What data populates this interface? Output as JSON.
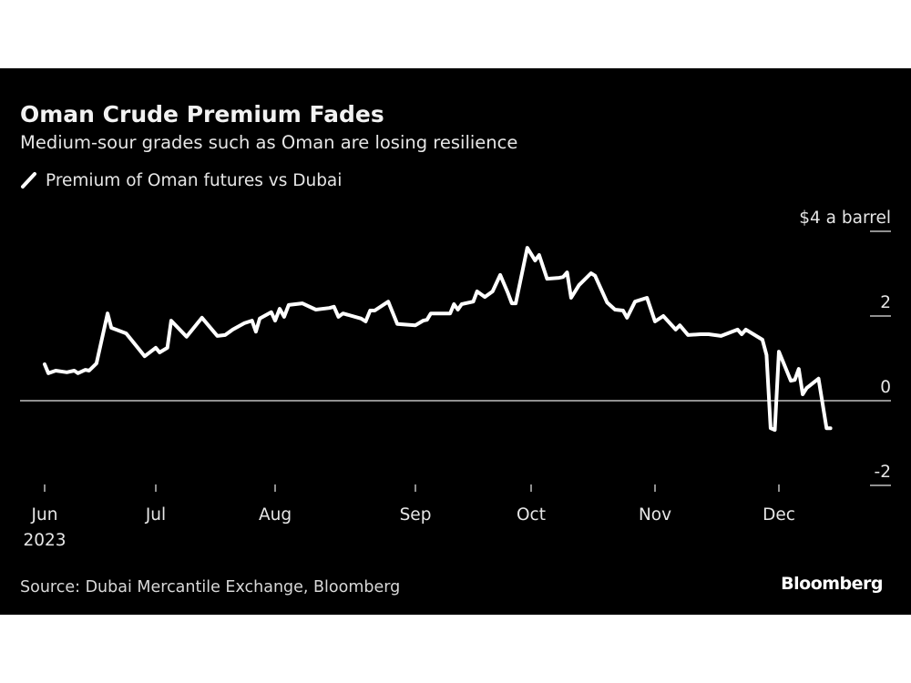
{
  "title": "Oman Crude Premium Fades",
  "subtitle": "Medium-sour grades such as Oman are losing resilience",
  "legend": "Premium of Oman futures vs Dubai",
  "source": "Source: Dubai Mercantile Exchange, Bloomberg",
  "logo": "Bloomberg",
  "colors": {
    "background": "#000000",
    "line": "#ffffff",
    "zero_line": "#bfbfbf",
    "text": "#e6e6e6"
  },
  "chart_data": {
    "type": "line",
    "title": "Oman Crude Premium Fades",
    "ylabel": "$4 a barrel",
    "ylim": [
      -2,
      4
    ],
    "y_ticks": [
      {
        "value": 4,
        "label": "$4 a barrel"
      },
      {
        "value": 2,
        "label": "2"
      },
      {
        "value": 0,
        "label": "0"
      },
      {
        "value": -2,
        "label": "-2"
      }
    ],
    "x_ticks": [
      {
        "date": "2023-06-01",
        "label": "Jun",
        "sublabel": "2023"
      },
      {
        "date": "2023-07-01",
        "label": "Jul"
      },
      {
        "date": "2023-08-01",
        "label": "Aug"
      },
      {
        "date": "2023-09-01",
        "label": "Sep"
      },
      {
        "date": "2023-10-01",
        "label": "Oct"
      },
      {
        "date": "2023-11-01",
        "label": "Nov"
      },
      {
        "date": "2023-12-01",
        "label": "Dec"
      }
    ],
    "grid": false,
    "legend_position": "top-left",
    "series": [
      {
        "name": "Premium of Oman futures vs Dubai",
        "points": [
          [
            "2023-06-01",
            0.86
          ],
          [
            "2023-06-02",
            0.65
          ],
          [
            "2023-06-04",
            0.71
          ],
          [
            "2023-06-07",
            0.67
          ],
          [
            "2023-06-09",
            0.71
          ],
          [
            "2023-06-10",
            0.65
          ],
          [
            "2023-06-12",
            0.73
          ],
          [
            "2023-06-13",
            0.71
          ],
          [
            "2023-06-15",
            0.88
          ],
          [
            "2023-06-18",
            2.06
          ],
          [
            "2023-06-19",
            1.72
          ],
          [
            "2023-06-23",
            1.59
          ],
          [
            "2023-06-28",
            1.05
          ],
          [
            "2023-07-01",
            1.25
          ],
          [
            "2023-07-02",
            1.14
          ],
          [
            "2023-07-04",
            1.25
          ],
          [
            "2023-07-05",
            1.89
          ],
          [
            "2023-07-09",
            1.51
          ],
          [
            "2023-07-13",
            1.96
          ],
          [
            "2023-07-17",
            1.53
          ],
          [
            "2023-07-19",
            1.55
          ],
          [
            "2023-07-21",
            1.68
          ],
          [
            "2023-07-24",
            1.83
          ],
          [
            "2023-07-26",
            1.89
          ],
          [
            "2023-07-27",
            1.63
          ],
          [
            "2023-07-28",
            1.94
          ],
          [
            "2023-07-31",
            2.09
          ],
          [
            "2023-08-01",
            1.89
          ],
          [
            "2023-08-02",
            2.17
          ],
          [
            "2023-08-03",
            1.98
          ],
          [
            "2023-08-04",
            2.26
          ],
          [
            "2023-08-07",
            2.3
          ],
          [
            "2023-08-10",
            2.15
          ],
          [
            "2023-08-13",
            2.19
          ],
          [
            "2023-08-14",
            2.22
          ],
          [
            "2023-08-15",
            1.98
          ],
          [
            "2023-08-16",
            2.06
          ],
          [
            "2023-08-20",
            1.94
          ],
          [
            "2023-08-21",
            1.87
          ],
          [
            "2023-08-22",
            2.13
          ],
          [
            "2023-08-23",
            2.13
          ],
          [
            "2023-08-26",
            2.34
          ],
          [
            "2023-08-28",
            1.81
          ],
          [
            "2023-09-01",
            1.78
          ],
          [
            "2023-09-03",
            1.89
          ],
          [
            "2023-09-04",
            1.91
          ],
          [
            "2023-09-05",
            2.06
          ],
          [
            "2023-09-08",
            2.06
          ],
          [
            "2023-09-10",
            2.06
          ],
          [
            "2023-09-11",
            2.28
          ],
          [
            "2023-09-12",
            2.15
          ],
          [
            "2023-09-13",
            2.28
          ],
          [
            "2023-09-16",
            2.34
          ],
          [
            "2023-09-17",
            2.58
          ],
          [
            "2023-09-19",
            2.45
          ],
          [
            "2023-09-21",
            2.58
          ],
          [
            "2023-09-23",
            2.97
          ],
          [
            "2023-09-25",
            2.54
          ],
          [
            "2023-09-26",
            2.3
          ],
          [
            "2023-09-27",
            2.3
          ],
          [
            "2023-09-30",
            3.61
          ],
          [
            "2023-10-02",
            3.31
          ],
          [
            "2023-10-03",
            3.44
          ],
          [
            "2023-10-05",
            2.88
          ],
          [
            "2023-10-08",
            2.9
          ],
          [
            "2023-10-09",
            2.92
          ],
          [
            "2023-10-10",
            3.03
          ],
          [
            "2023-10-11",
            2.43
          ],
          [
            "2023-10-13",
            2.73
          ],
          [
            "2023-10-16",
            3.01
          ],
          [
            "2023-10-17",
            2.95
          ],
          [
            "2023-10-20",
            2.32
          ],
          [
            "2023-10-22",
            2.15
          ],
          [
            "2023-10-24",
            2.13
          ],
          [
            "2023-10-25",
            1.96
          ],
          [
            "2023-10-27",
            2.34
          ],
          [
            "2023-10-30",
            2.43
          ],
          [
            "2023-11-01",
            1.87
          ],
          [
            "2023-11-03",
            2.0
          ],
          [
            "2023-11-06",
            1.68
          ],
          [
            "2023-11-07",
            1.78
          ],
          [
            "2023-11-09",
            1.55
          ],
          [
            "2023-11-12",
            1.57
          ],
          [
            "2023-11-14",
            1.57
          ],
          [
            "2023-11-17",
            1.53
          ],
          [
            "2023-11-21",
            1.68
          ],
          [
            "2023-11-22",
            1.57
          ],
          [
            "2023-11-23",
            1.68
          ],
          [
            "2023-11-27",
            1.44
          ],
          [
            "2023-11-28",
            1.08
          ],
          [
            "2023-11-29",
            -0.65
          ],
          [
            "2023-11-30",
            -0.69
          ],
          [
            "2023-12-01",
            1.16
          ],
          [
            "2023-12-04",
            0.47
          ],
          [
            "2023-12-05",
            0.49
          ],
          [
            "2023-12-06",
            0.75
          ],
          [
            "2023-12-07",
            0.15
          ],
          [
            "2023-12-08",
            0.3
          ],
          [
            "2023-12-11",
            0.52
          ],
          [
            "2023-12-13",
            -0.65
          ],
          [
            "2023-12-14",
            -0.65
          ]
        ]
      }
    ]
  }
}
